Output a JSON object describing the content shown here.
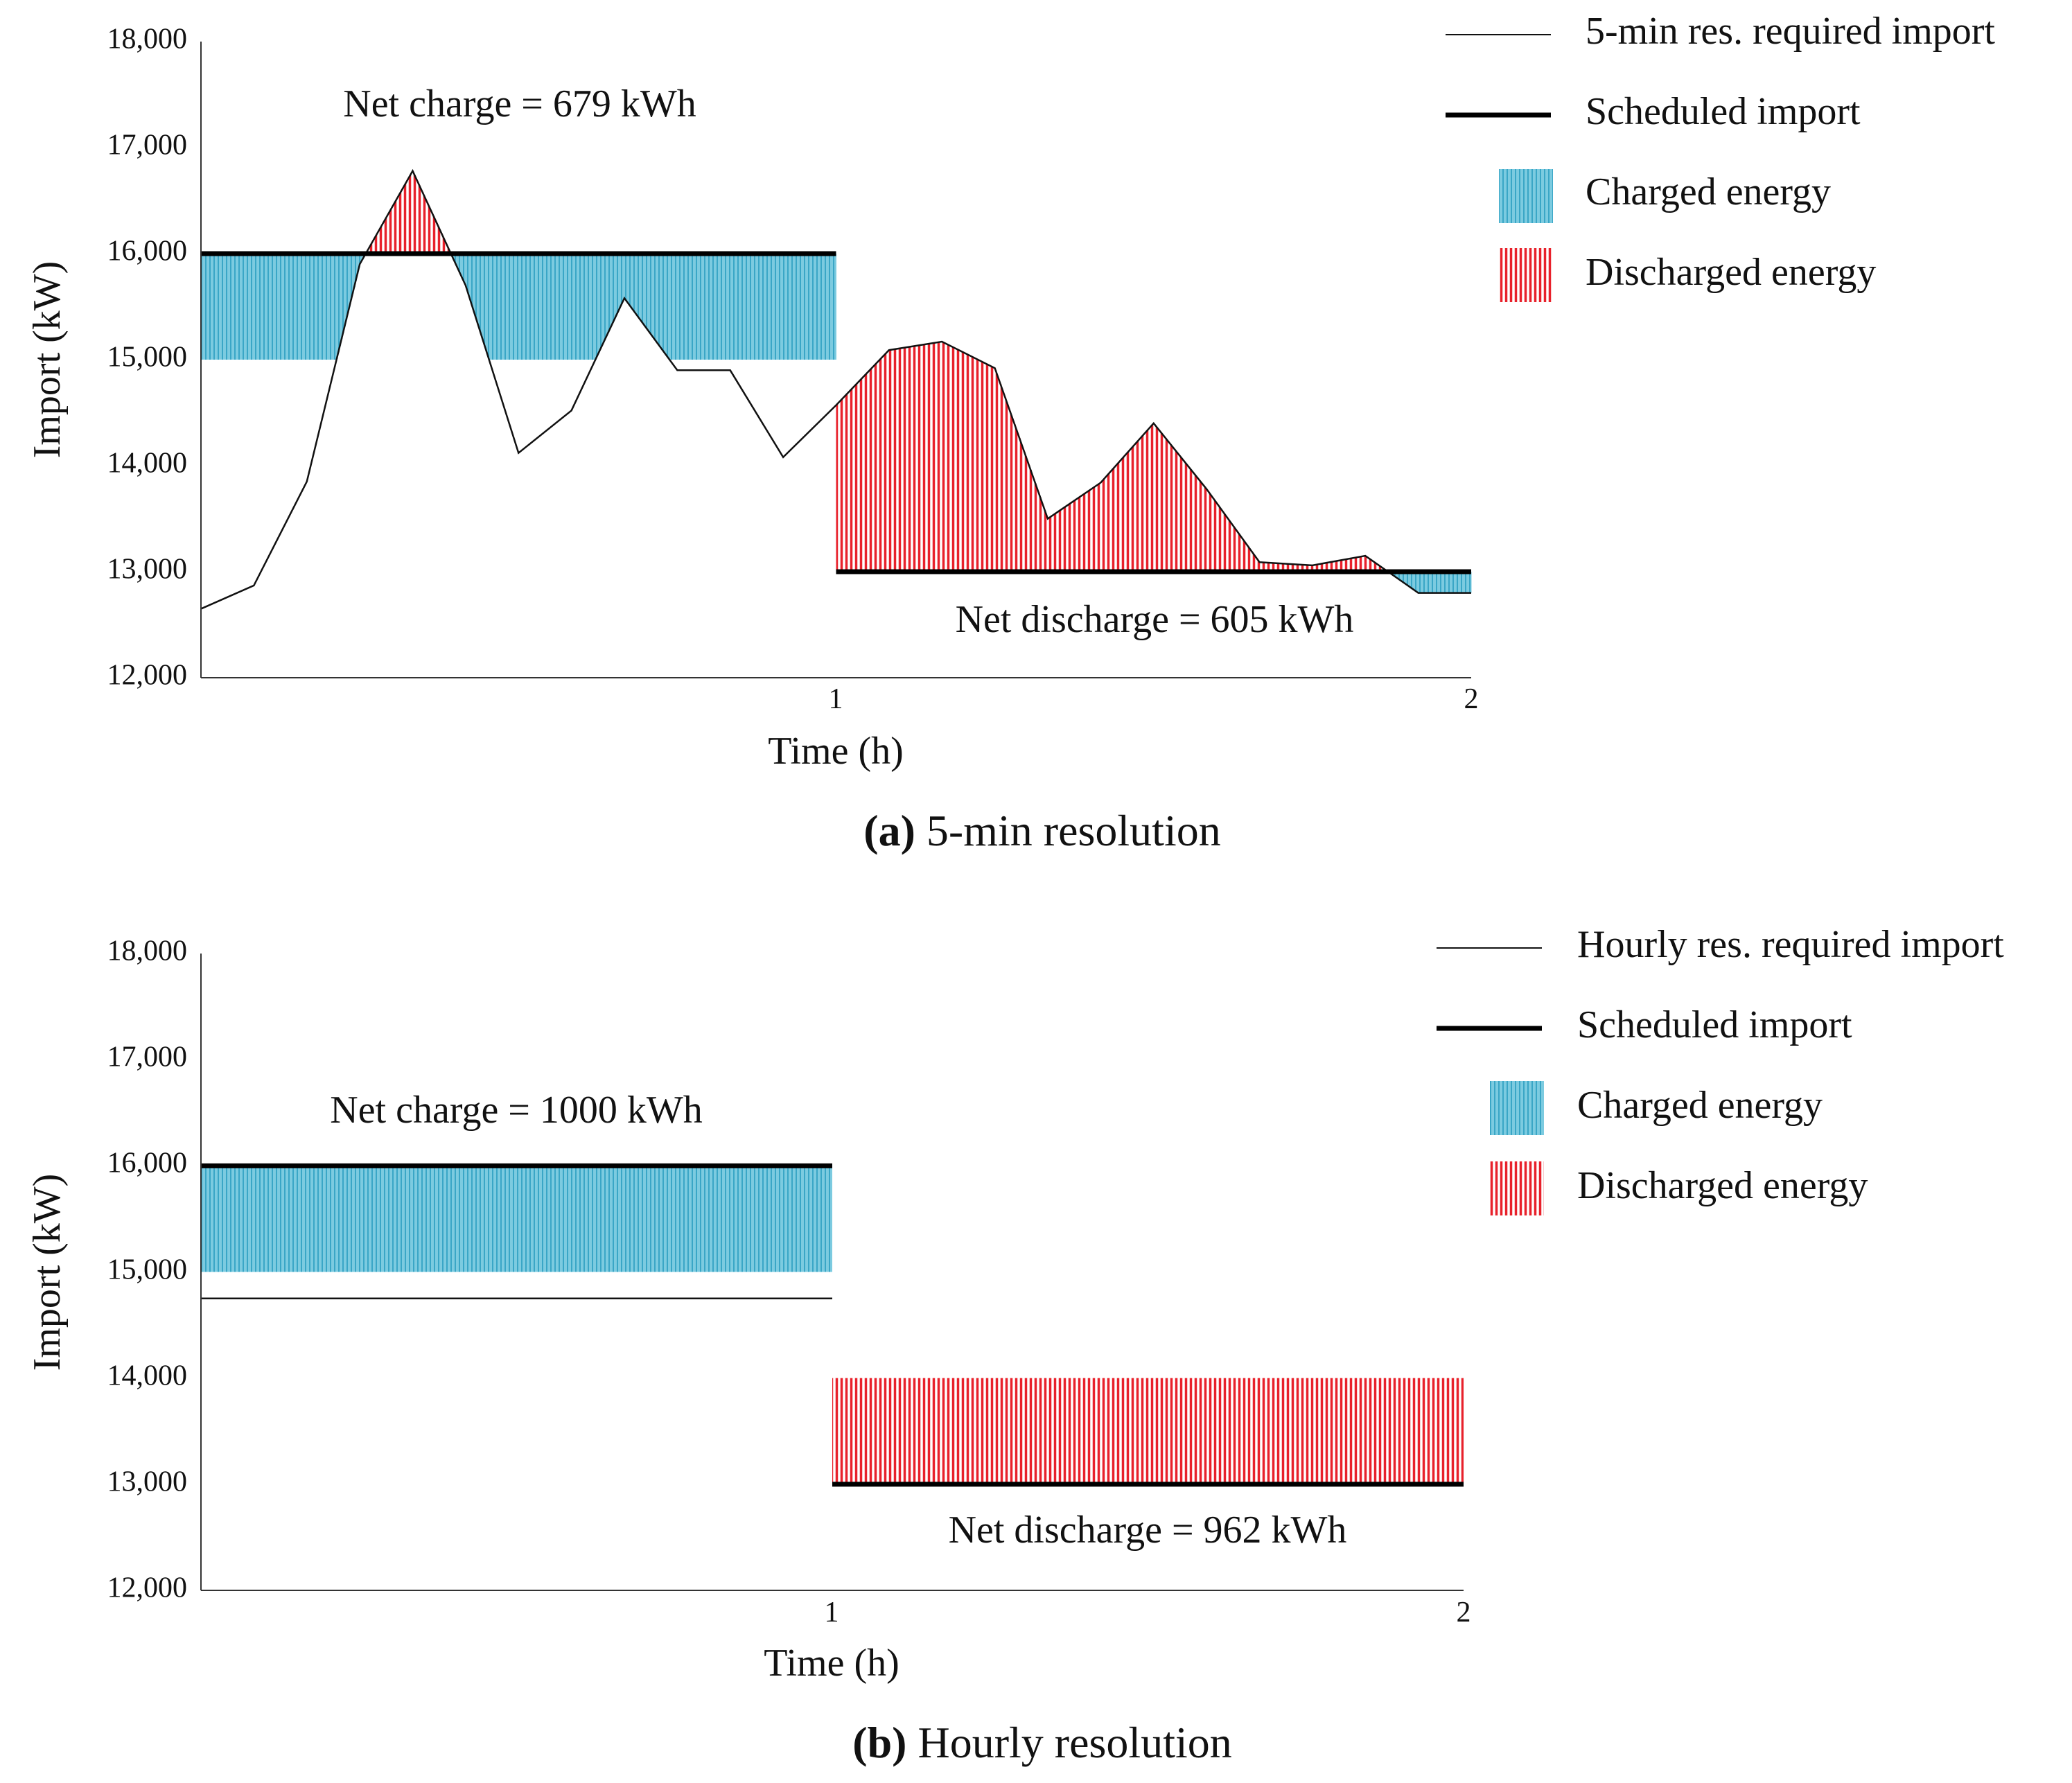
{
  "chart_data": [
    {
      "type": "line",
      "panel": "a",
      "caption_letter": "(a)",
      "caption_text": " 5-min resolution",
      "xlabel": "Time (h)",
      "ylabel": "Import (kW)",
      "xlim": [
        0,
        2
      ],
      "ylim": [
        12000,
        18000
      ],
      "x_ticks": [
        "1",
        "2"
      ],
      "y_ticks": [
        "12,000",
        "13,000",
        "14,000",
        "15,000",
        "16,000",
        "17,000",
        "18,000"
      ],
      "series": [
        {
          "name": "5-min res. required import",
          "x": [
            0,
            0.0833,
            0.1667,
            0.25,
            0.3333,
            0.4167,
            0.5,
            0.5833,
            0.6667,
            0.75,
            0.8333,
            0.9167,
            1.0,
            1.0833,
            1.1667,
            1.25,
            1.3333,
            1.4167,
            1.5,
            1.5833,
            1.6667,
            1.75,
            1.8333,
            1.9167,
            2.0
          ],
          "values": [
            12650,
            12870,
            13850,
            15900,
            16780,
            15700,
            14120,
            14520,
            15580,
            14900,
            14900,
            14080,
            14570,
            15090,
            15170,
            14920,
            13500,
            13840,
            14400,
            13780,
            13090,
            13060,
            13150,
            12800,
            12800
          ]
        },
        {
          "name": "Scheduled import",
          "segments": [
            {
              "x": [
                0,
                1
              ],
              "value": 16000
            },
            {
              "x": [
                1,
                2
              ],
              "value": 13000
            }
          ]
        }
      ],
      "fills": [
        {
          "name": "Charged energy",
          "color": "#5bb8d4"
        },
        {
          "name": "Discharged energy",
          "color": "#e8212b"
        }
      ],
      "legend": [
        "5-min res. required import",
        "Scheduled import",
        "Charged energy",
        "Discharged energy"
      ],
      "legend_position": "right",
      "annotations": [
        "Net charge = 679 kWh",
        "Net discharge = 605 kWh"
      ]
    },
    {
      "type": "line",
      "panel": "b",
      "caption_letter": "(b)",
      "caption_text": " Hourly resolution",
      "xlabel": "Time (h)",
      "ylabel": "Import (kW)",
      "xlim": [
        0,
        2
      ],
      "ylim": [
        12000,
        18000
      ],
      "x_ticks": [
        "1",
        "2"
      ],
      "y_ticks": [
        "12,000",
        "13,000",
        "14,000",
        "15,000",
        "16,000",
        "17,000",
        "18,000"
      ],
      "series": [
        {
          "name": "Hourly res. required import",
          "segments": [
            {
              "x": [
                0,
                1
              ],
              "value": 14750
            }
          ]
        },
        {
          "name": "Scheduled import",
          "segments": [
            {
              "x": [
                0,
                1
              ],
              "value": 16000
            },
            {
              "x": [
                1,
                2
              ],
              "value": 13000
            }
          ]
        }
      ],
      "fills": [
        {
          "name": "Charged energy",
          "color": "#5bb8d4",
          "x": [
            0,
            1
          ],
          "range": [
            15000,
            16000
          ]
        },
        {
          "name": "Discharged energy",
          "color": "#e8212b",
          "x": [
            1,
            2
          ],
          "range": [
            13000,
            14000
          ]
        }
      ],
      "legend": [
        "Hourly res. required import",
        "Scheduled import",
        "Charged energy",
        "Discharged energy"
      ],
      "legend_position": "right",
      "annotations": [
        "Net charge = 1000 kWh",
        "Net discharge = 962 kWh"
      ]
    }
  ]
}
